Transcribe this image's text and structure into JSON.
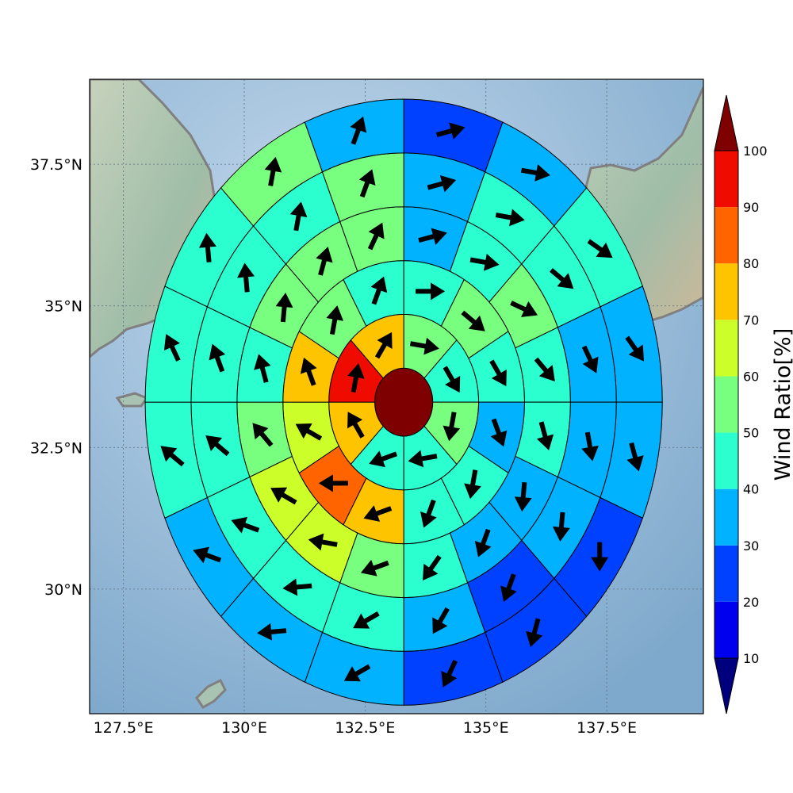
{
  "map": {
    "lon_range": [
      126.8,
      139.5
    ],
    "lat_range": [
      27.8,
      39.0
    ],
    "lon_ticks": [
      {
        "value": 127.5,
        "label": "127.5°E"
      },
      {
        "value": 130.0,
        "label": "130°E"
      },
      {
        "value": 132.5,
        "label": "132.5°E"
      },
      {
        "value": 135.0,
        "label": "135°E"
      },
      {
        "value": 137.5,
        "label": "137.5°E"
      }
    ],
    "lat_ticks": [
      {
        "value": 37.5,
        "label": "37.5°N"
      },
      {
        "value": 35.0,
        "label": "35°N"
      },
      {
        "value": 32.5,
        "label": "32.5°N"
      },
      {
        "value": 30.0,
        "label": "30°N"
      }
    ],
    "ocean_color": "#9dbdd8",
    "land_color": "#a9c3b2",
    "coastline_color": "#808080"
  },
  "polar_grid": {
    "center": {
      "lon": 133.3,
      "lat": 33.3
    },
    "ring_edges_deg": [
      0.0,
      0.6,
      1.55,
      2.5,
      3.45,
      4.4,
      5.35
    ],
    "sectors_per_ring": [
      1,
      8,
      12,
      16,
      16,
      16,
      16
    ],
    "wind_ratio": [
      [
        100
      ],
      [
        50,
        40,
        50,
        40,
        40,
        70,
        90,
        70
      ],
      [
        40,
        50,
        40,
        30,
        40,
        40,
        70,
        80,
        60,
        70,
        50,
        40
      ],
      [
        30,
        40,
        50,
        40,
        40,
        30,
        30,
        40,
        50,
        60,
        60,
        50,
        40,
        50,
        50,
        50
      ],
      [
        30,
        40,
        40,
        30,
        30,
        30,
        20,
        30,
        40,
        40,
        40,
        40,
        40,
        40,
        40,
        50
      ],
      [
        20,
        30,
        40,
        30,
        30,
        20,
        20,
        20,
        30,
        30,
        30,
        40,
        40,
        40,
        50,
        30
      ],
      [
        20,
        20,
        20,
        20,
        20,
        20,
        20,
        10,
        20,
        20,
        30,
        30,
        30,
        40,
        40,
        30
      ]
    ],
    "wind_direction_deg": [
      [
        null
      ],
      [
        100,
        150,
        190,
        260,
        250,
        330,
        10,
        30
      ],
      [
        90,
        130,
        150,
        160,
        190,
        200,
        250,
        270,
        300,
        340,
        10,
        20
      ],
      [
        75,
        100,
        115,
        140,
        165,
        185,
        200,
        215,
        250,
        280,
        300,
        320,
        345,
        5,
        15,
        25
      ],
      [
        75,
        100,
        130,
        155,
        170,
        185,
        200,
        210,
        240,
        265,
        290,
        310,
        340,
        355,
        10,
        20
      ],
      [
        75,
        100,
        125,
        145,
        165,
        180,
        195,
        205,
        240,
        265,
        290,
        310,
        335,
        355,
        10,
        20
      ],
      [
        75,
        95,
        120,
        150,
        160,
        175,
        200,
        210,
        245,
        265,
        290,
        310,
        330,
        355,
        15,
        25
      ]
    ]
  },
  "colorbar": {
    "label": "Wind Ratio[%]",
    "levels": [
      0,
      10,
      20,
      30,
      40,
      50,
      60,
      70,
      80,
      90,
      100,
      110
    ],
    "colors": [
      "#00007f",
      "#0000ef",
      "#0040ff",
      "#00b2ff",
      "#2bffd0",
      "#79ff7f",
      "#ccff29",
      "#ffc400",
      "#ff6400",
      "#f00b00",
      "#7f0000"
    ],
    "tick_labels": [
      "10",
      "20",
      "30",
      "40",
      "50",
      "60",
      "70",
      "80",
      "90",
      "100"
    ]
  }
}
